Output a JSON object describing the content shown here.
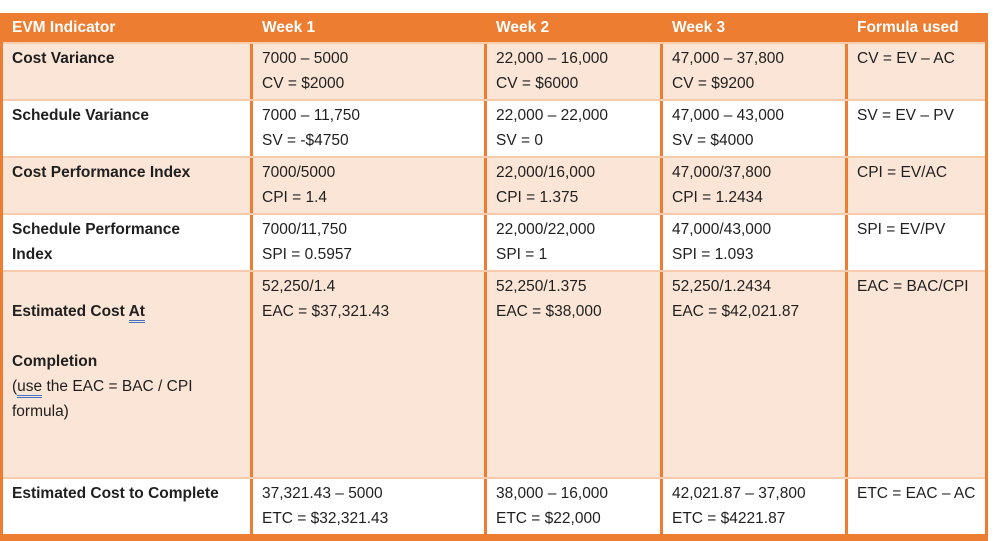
{
  "colors": {
    "header_bg": "#ED7D31",
    "band_bg": "#FBE5D6",
    "border": "#ED7D31",
    "row_divider": "#F8CBAD",
    "grammar_underline": "#4472C4",
    "header_text": "#FFFFFF",
    "body_text": "#1F1F1F"
  },
  "table": {
    "headers": [
      "EVM Indicator",
      "Week 1",
      "Week 2",
      "Week 3",
      "Formula used"
    ],
    "rows": [
      {
        "label": "Cost Variance",
        "week1": {
          "calc": "7000 – 5000",
          "result": "CV = $2000"
        },
        "week2": {
          "calc": "22,000 – 16,000",
          "result": "CV = $6000"
        },
        "week3": {
          "calc": "47,000 – 37,800",
          "result": "CV = $9200"
        },
        "formula": "CV = EV – AC"
      },
      {
        "label": "Schedule Variance",
        "week1": {
          "calc": "7000 – 11,750",
          "result": "SV = -$4750"
        },
        "week2": {
          "calc": "22,000 – 22,000",
          "result": "SV = 0"
        },
        "week3": {
          "calc": "47,000 – 43,000",
          "result": "SV = $4000"
        },
        "formula": "SV = EV – PV"
      },
      {
        "label": "Cost Performance Index",
        "week1": {
          "calc": "7000/5000",
          "result": "CPI = 1.4"
        },
        "week2": {
          "calc": "22,000/16,000",
          "result": "CPI = 1.375"
        },
        "week3": {
          "calc": "47,000/37,800",
          "result": "CPI = 1.2434"
        },
        "formula": "CPI = EV/AC"
      },
      {
        "label": "Schedule Performance\nIndex",
        "week1": {
          "calc": "7000/11,750",
          "result": "SPI = 0.5957"
        },
        "week2": {
          "calc": "22,000/22,000",
          "result": "SPI = 1"
        },
        "week3": {
          "calc": "47,000/43,000",
          "result": "SPI = 1.093"
        },
        "formula": "SPI = EV/PV"
      },
      {
        "label_parts": {
          "bold_before": "Estimated Cost ",
          "bold_underlined": "At",
          "bold_line2": "Completion",
          "paren_open": "(",
          "normal_underlined": "use",
          "normal_rest": " the EAC = BAC / CPI formula)"
        },
        "week1": {
          "calc": "52,250/1.4",
          "result": "EAC = $37,321.43"
        },
        "week2": {
          "calc": "52,250/1.375",
          "result": "EAC = $38,000"
        },
        "week3": {
          "calc": "52,250/1.2434",
          "result": "EAC = $42,021.87"
        },
        "formula": "EAC = BAC/CPI"
      },
      {
        "label": "Estimated Cost to Complete",
        "week1": {
          "calc": "37,321.43 – 5000",
          "result": "ETC = $32,321.43"
        },
        "week2": {
          "calc": "38,000 – 16,000",
          "result": "ETC = $22,000"
        },
        "week3": {
          "calc": "42,021.87 – 37,800",
          "result": "ETC = $4221.87"
        },
        "formula": "ETC = EAC – AC"
      }
    ]
  }
}
